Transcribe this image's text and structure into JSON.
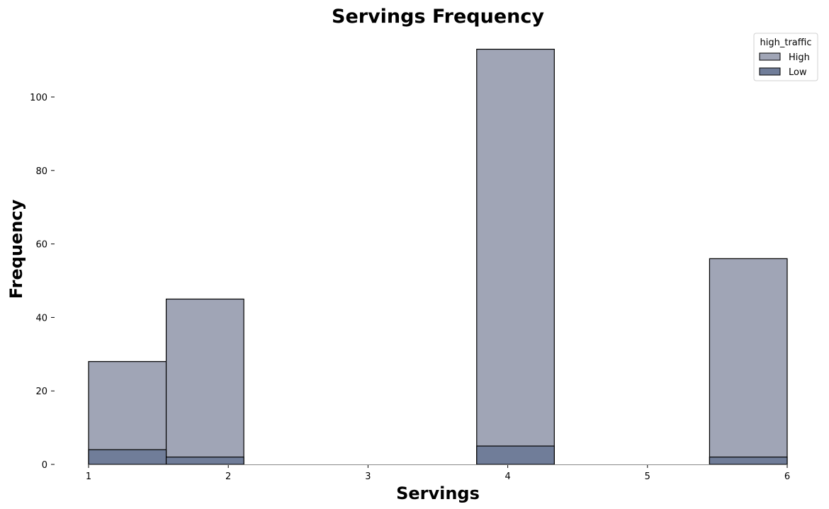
{
  "chart_data": {
    "type": "bar",
    "title": "Servings Frequency",
    "xlabel": "Servings",
    "ylabel": "Frequency",
    "xlim": [
      1,
      6
    ],
    "ylim": [
      0,
      115
    ],
    "x_ticks": [
      "1",
      "2",
      "3",
      "4",
      "5",
      "6"
    ],
    "y_ticks": [
      "0",
      "20",
      "40",
      "60",
      "80",
      "100"
    ],
    "bin_width": 0.5556,
    "bins": [
      {
        "x_start": 1.0,
        "x_end": 1.5556
      },
      {
        "x_start": 1.5556,
        "x_end": 2.1111
      },
      {
        "x_start": 3.7778,
        "x_end": 4.3333
      },
      {
        "x_start": 5.4444,
        "x_end": 6.0
      }
    ],
    "series": [
      {
        "name": "High",
        "values": [
          28,
          45,
          113,
          56
        ],
        "color": "#a0a5b6"
      },
      {
        "name": "Low",
        "values": [
          4,
          2,
          5,
          2
        ],
        "color": "#707d99"
      }
    ],
    "legend": {
      "title": "high_traffic",
      "position": "top-right",
      "entries": [
        "High",
        "Low"
      ]
    },
    "grid": false
  }
}
